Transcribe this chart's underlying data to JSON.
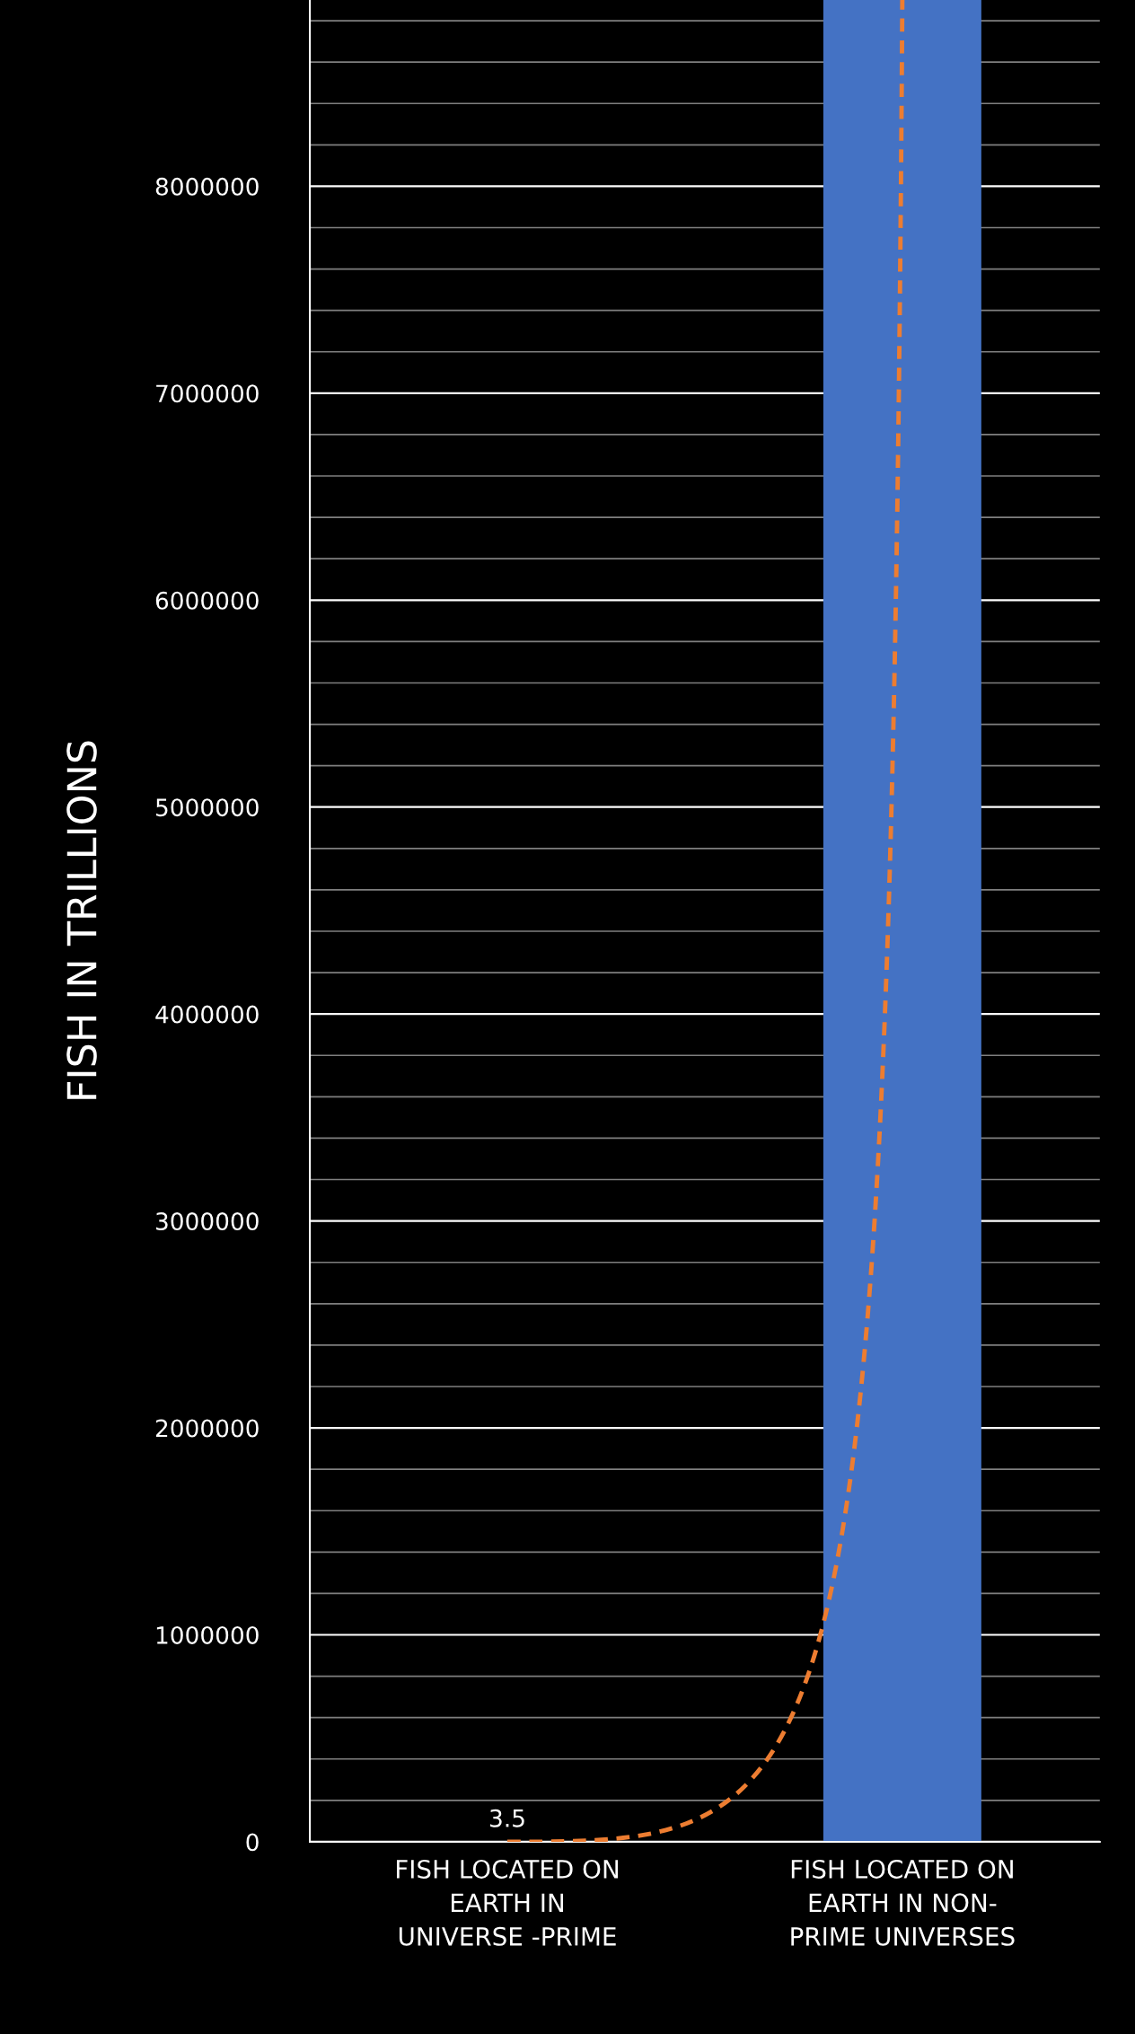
{
  "chart_data": {
    "type": "bar",
    "ylabel": "FISH IN TRILLIONS",
    "categories": [
      "FISH LOCATED ON\nEARTH IN\nUNIVERSE -PRIME",
      "FISH LOCATED ON\nEARTH IN NON-\nPRIME UNIVERSES"
    ],
    "series": [
      {
        "color": "#4472c4",
        "values": [
          3.5,
          8900000
        ],
        "value_labels": [
          "3.5",
          null
        ]
      },
      {
        "type": "line",
        "color": "#ed7d31",
        "line_style": "dashed",
        "values": [
          3.5,
          8900000
        ]
      }
    ],
    "ylim": [
      0,
      8900000
    ],
    "yticks": [
      0,
      1000000,
      2000000,
      3000000,
      4000000,
      5000000,
      6000000,
      7000000,
      8000000
    ],
    "grid": "y"
  }
}
